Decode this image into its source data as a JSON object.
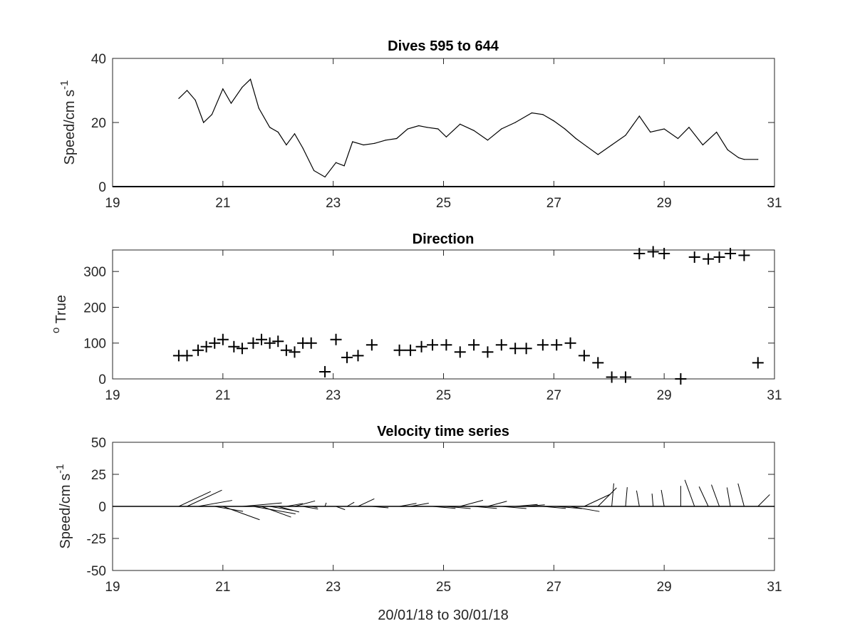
{
  "chart_data": [
    {
      "type": "line",
      "title": "Dives 595 to 644",
      "ylabel": "Speed/cm s",
      "ylabel_sup": "-1",
      "xlabel": "",
      "xlim": [
        19,
        31
      ],
      "ylim": [
        0,
        40
      ],
      "xticks": [
        "19",
        "21",
        "23",
        "25",
        "27",
        "29",
        "31"
      ],
      "yticks": [
        "0",
        "20",
        "40"
      ],
      "color": "#000000",
      "x": [
        20.2,
        20.35,
        20.5,
        20.65,
        20.8,
        21.0,
        21.15,
        21.35,
        21.5,
        21.65,
        21.85,
        22.0,
        22.15,
        22.3,
        22.45,
        22.65,
        22.85,
        23.05,
        23.2,
        23.35,
        23.55,
        23.75,
        23.95,
        24.15,
        24.35,
        24.55,
        24.7,
        24.9,
        25.05,
        25.3,
        25.55,
        25.8,
        26.05,
        26.3,
        26.6,
        26.8,
        27.0,
        27.2,
        27.4,
        27.6,
        27.8,
        28.05,
        28.3,
        28.55,
        28.75,
        29.0,
        29.25,
        29.45,
        29.7,
        29.95,
        30.15,
        30.35,
        30.45,
        30.7
      ],
      "y": [
        27.5,
        30,
        27,
        20,
        22.5,
        30.5,
        26,
        31,
        33.5,
        24.5,
        18.5,
        17,
        13,
        16.5,
        12,
        5,
        3,
        7.5,
        6.5,
        14,
        13,
        13.5,
        14.5,
        15,
        18,
        19,
        18.5,
        18,
        15.5,
        19.5,
        17.5,
        14.5,
        18,
        20,
        23,
        22.5,
        20.5,
        18,
        15,
        12.5,
        10,
        13,
        16,
        22,
        17,
        18,
        15,
        18.5,
        13,
        17,
        11.5,
        9,
        8.5,
        8.5
      ]
    },
    {
      "type": "scatter",
      "title": "Direction",
      "ylabel": "True",
      "ylabel_sup": "o",
      "xlabel": "",
      "marker": "+",
      "xlim": [
        19,
        31
      ],
      "ylim": [
        0,
        360
      ],
      "xticks": [
        "19",
        "21",
        "23",
        "25",
        "27",
        "29",
        "31"
      ],
      "yticks": [
        "0",
        "100",
        "200",
        "300"
      ],
      "color": "#000000",
      "x": [
        20.2,
        20.35,
        20.55,
        20.7,
        20.85,
        21.0,
        21.2,
        21.35,
        21.55,
        21.7,
        21.85,
        22.0,
        22.15,
        22.3,
        22.45,
        22.6,
        22.85,
        23.05,
        23.25,
        23.45,
        23.7,
        24.2,
        24.4,
        24.6,
        24.8,
        25.05,
        25.3,
        25.55,
        25.8,
        26.05,
        26.3,
        26.5,
        26.8,
        27.05,
        27.3,
        27.55,
        27.8,
        28.05,
        28.3,
        28.55,
        28.8,
        29.0,
        29.3,
        29.55,
        29.8,
        30.0,
        30.2,
        30.45,
        30.7
      ],
      "y": [
        65,
        65,
        80,
        90,
        100,
        110,
        90,
        85,
        100,
        110,
        100,
        105,
        80,
        75,
        100,
        100,
        20,
        110,
        60,
        65,
        95,
        80,
        80,
        90,
        95,
        95,
        75,
        95,
        75,
        95,
        85,
        85,
        95,
        95,
        100,
        65,
        45,
        5,
        5,
        350,
        355,
        350,
        0,
        340,
        335,
        340,
        350,
        345,
        45
      ]
    },
    {
      "type": "quiver",
      "title": "Velocity time series",
      "ylabel": "Speed/cm s",
      "ylabel_sup": "-1",
      "xlabel": "20/01/18 to 30/01/18",
      "xlim": [
        19,
        31
      ],
      "ylim": [
        -50,
        50
      ],
      "xticks": [
        "19",
        "21",
        "23",
        "25",
        "27",
        "29",
        "31"
      ],
      "yticks": [
        "-50",
        "-25",
        "0",
        "25",
        "50"
      ],
      "color": "#000000",
      "x": [
        20.2,
        20.35,
        20.55,
        20.7,
        20.85,
        21.0,
        21.2,
        21.35,
        21.55,
        21.7,
        21.85,
        22.0,
        22.15,
        22.3,
        22.45,
        22.6,
        22.85,
        23.05,
        23.25,
        23.45,
        23.7,
        24.2,
        24.4,
        24.6,
        24.8,
        25.05,
        25.3,
        25.55,
        25.8,
        26.05,
        26.3,
        26.5,
        26.8,
        27.05,
        27.3,
        27.55,
        27.8,
        28.05,
        28.3,
        28.55,
        28.8,
        29.0,
        29.3,
        29.55,
        29.8,
        30.0,
        30.2,
        30.45,
        30.7
      ],
      "speed": [
        27.5,
        30,
        27,
        20,
        22.5,
        30.5,
        26,
        31,
        33.5,
        24.5,
        18.5,
        17,
        13,
        16.5,
        12,
        5,
        3,
        7.5,
        6.5,
        14,
        13,
        13.5,
        14.5,
        15,
        18,
        19,
        18.5,
        18,
        15.5,
        19.5,
        17.5,
        14.5,
        18,
        20,
        23,
        22.5,
        20.5,
        18,
        15,
        12.5,
        10,
        13,
        16,
        22,
        17,
        18,
        15,
        18.5,
        13
      ],
      "direction": [
        65,
        65,
        80,
        90,
        100,
        110,
        90,
        85,
        100,
        110,
        100,
        105,
        80,
        75,
        100,
        100,
        20,
        110,
        60,
        65,
        95,
        80,
        80,
        90,
        95,
        95,
        75,
        95,
        75,
        95,
        85,
        85,
        95,
        95,
        100,
        65,
        45,
        5,
        5,
        350,
        355,
        350,
        0,
        340,
        335,
        340,
        350,
        345,
        45
      ]
    }
  ]
}
